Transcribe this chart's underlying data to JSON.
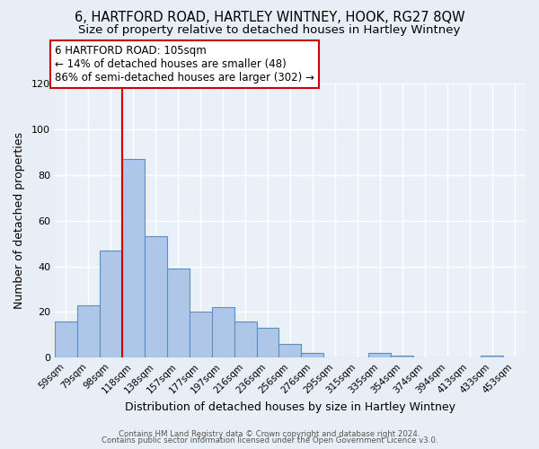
{
  "title": "6, HARTFORD ROAD, HARTLEY WINTNEY, HOOK, RG27 8QW",
  "subtitle": "Size of property relative to detached houses in Hartley Wintney",
  "xlabel": "Distribution of detached houses by size in Hartley Wintney",
  "ylabel": "Number of detached properties",
  "bin_labels": [
    "59sqm",
    "79sqm",
    "98sqm",
    "118sqm",
    "138sqm",
    "157sqm",
    "177sqm",
    "197sqm",
    "216sqm",
    "236sqm",
    "256sqm",
    "276sqm",
    "295sqm",
    "315sqm",
    "335sqm",
    "354sqm",
    "374sqm",
    "394sqm",
    "413sqm",
    "433sqm",
    "453sqm"
  ],
  "bar_heights": [
    16,
    23,
    47,
    87,
    53,
    39,
    20,
    22,
    16,
    13,
    6,
    2,
    0,
    0,
    2,
    1,
    0,
    0,
    0,
    1,
    0
  ],
  "bar_color": "#aec6e8",
  "bar_edge_color": "#5a8fc2",
  "bar_edge_width": 0.8,
  "vline_index": 2.5,
  "vline_color": "#cc0000",
  "ylim": [
    0,
    120
  ],
  "yticks": [
    0,
    20,
    40,
    60,
    80,
    100,
    120
  ],
  "annotation_title": "6 HARTFORD ROAD: 105sqm",
  "annotation_line1": "← 14% of detached houses are smaller (48)",
  "annotation_line2": "86% of semi-detached houses are larger (302) →",
  "annotation_box_color": "#ffffff",
  "annotation_box_edge_color": "#cc0000",
  "footer1": "Contains HM Land Registry data © Crown copyright and database right 2024.",
  "footer2": "Contains public sector information licensed under the Open Government Licence v3.0.",
  "background_color": "#e8eef5",
  "plot_background_color": "#eaf0f8",
  "grid_color": "#ffffff",
  "title_fontsize": 10.5,
  "subtitle_fontsize": 9.5
}
